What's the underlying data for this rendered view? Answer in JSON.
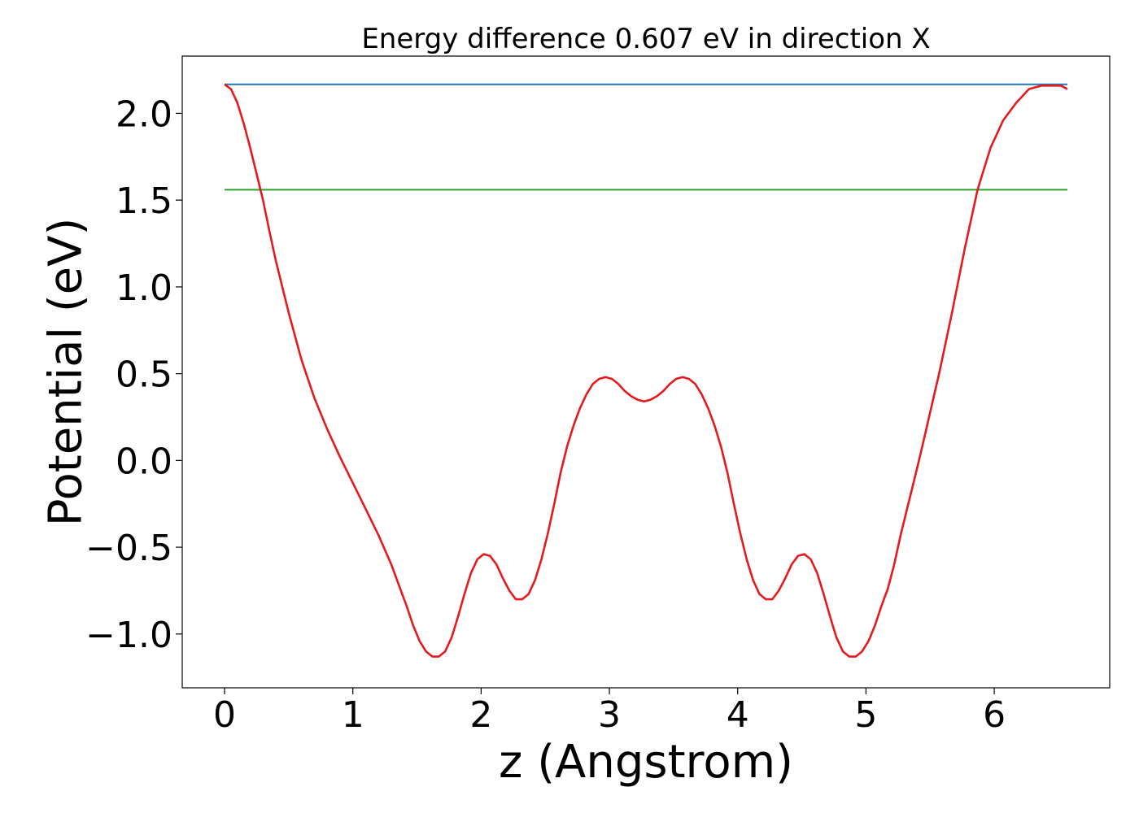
{
  "chart_data": {
    "type": "line",
    "title": "Energy difference 0.607 eV in direction X",
    "xlabel": "z (Angstrom)",
    "ylabel": "Potential (eV)",
    "xlim": [
      -0.33,
      6.9
    ],
    "ylim": [
      -1.31,
      2.33
    ],
    "x_ticks": [
      0,
      1,
      2,
      3,
      4,
      5,
      6
    ],
    "x_tick_labels": [
      "0",
      "1",
      "2",
      "3",
      "4",
      "5",
      "6"
    ],
    "y_ticks": [
      -1.0,
      -0.5,
      0.0,
      0.5,
      1.0,
      1.5,
      2.0
    ],
    "y_tick_labels": [
      "−1.0",
      "−0.5",
      "0.0",
      "0.5",
      "1.0",
      "1.5",
      "2.0"
    ],
    "grid": false,
    "series": [
      {
        "color": "#1f77b4",
        "kind": "hline",
        "x": [
          0.0,
          6.57
        ],
        "y": [
          2.167,
          2.167
        ]
      },
      {
        "color": "#2ca02c",
        "kind": "hline",
        "x": [
          0.0,
          6.57
        ],
        "y": [
          1.56,
          1.56
        ]
      },
      {
        "color": "#e41a1c",
        "kind": "curve",
        "x": [
          0.0,
          0.05,
          0.1,
          0.15,
          0.2,
          0.25,
          0.3,
          0.35,
          0.4,
          0.5,
          0.6,
          0.7,
          0.8,
          0.9,
          1.0,
          1.1,
          1.2,
          1.3,
          1.37,
          1.42,
          1.47,
          1.52,
          1.57,
          1.62,
          1.67,
          1.72,
          1.77,
          1.82,
          1.87,
          1.92,
          1.97,
          2.02,
          2.07,
          2.12,
          2.17,
          2.22,
          2.27,
          2.32,
          2.37,
          2.42,
          2.47,
          2.52,
          2.57,
          2.62,
          2.67,
          2.72,
          2.77,
          2.82,
          2.87,
          2.92,
          2.97,
          3.02,
          3.07,
          3.12,
          3.17,
          3.22,
          3.27,
          3.32,
          3.37,
          3.42,
          3.47,
          3.52,
          3.57,
          3.62,
          3.67,
          3.72,
          3.77,
          3.82,
          3.87,
          3.92,
          3.97,
          4.02,
          4.07,
          4.12,
          4.17,
          4.22,
          4.27,
          4.32,
          4.37,
          4.42,
          4.47,
          4.52,
          4.57,
          4.62,
          4.67,
          4.72,
          4.77,
          4.82,
          4.87,
          4.92,
          4.97,
          5.02,
          5.07,
          5.12,
          5.17,
          5.22,
          5.27,
          5.32,
          5.37,
          5.42,
          5.47,
          5.57,
          5.67,
          5.77,
          5.87,
          5.97,
          6.07,
          6.17,
          6.27,
          6.32,
          6.37,
          6.42,
          6.47,
          6.52,
          6.57
        ],
        "y": [
          2.167,
          2.14,
          2.06,
          1.94,
          1.8,
          1.65,
          1.5,
          1.32,
          1.15,
          0.85,
          0.58,
          0.36,
          0.18,
          0.02,
          -0.13,
          -0.28,
          -0.43,
          -0.6,
          -0.74,
          -0.84,
          -0.95,
          -1.04,
          -1.1,
          -1.13,
          -1.13,
          -1.1,
          -1.02,
          -0.9,
          -0.77,
          -0.65,
          -0.57,
          -0.54,
          -0.55,
          -0.6,
          -0.68,
          -0.75,
          -0.8,
          -0.8,
          -0.77,
          -0.69,
          -0.57,
          -0.42,
          -0.25,
          -0.07,
          0.08,
          0.2,
          0.3,
          0.38,
          0.44,
          0.47,
          0.48,
          0.47,
          0.44,
          0.4,
          0.37,
          0.35,
          0.34,
          0.35,
          0.37,
          0.4,
          0.44,
          0.47,
          0.48,
          0.47,
          0.44,
          0.38,
          0.3,
          0.2,
          0.08,
          -0.07,
          -0.25,
          -0.42,
          -0.57,
          -0.69,
          -0.77,
          -0.8,
          -0.8,
          -0.75,
          -0.68,
          -0.6,
          -0.55,
          -0.54,
          -0.57,
          -0.65,
          -0.77,
          -0.9,
          -1.02,
          -1.1,
          -1.13,
          -1.13,
          -1.1,
          -1.04,
          -0.95,
          -0.84,
          -0.74,
          -0.6,
          -0.43,
          -0.28,
          -0.13,
          0.02,
          0.18,
          0.5,
          0.85,
          1.22,
          1.56,
          1.8,
          1.96,
          2.06,
          2.14,
          2.15,
          2.16,
          2.16,
          2.16,
          2.16,
          2.14
        ]
      }
    ]
  }
}
